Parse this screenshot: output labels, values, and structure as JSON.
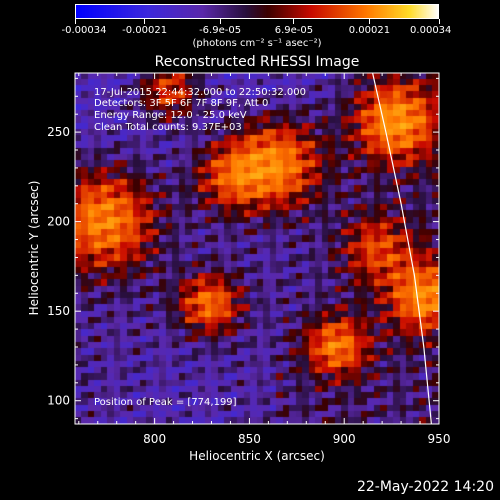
{
  "chart_data": {
    "type": "heatmap",
    "title": "Reconstructed RHESSI Image",
    "xlabel": "Heliocentric X (arcsec)",
    "ylabel": "Heliocentric Y (arcsec)",
    "xlim": [
      758,
      950
    ],
    "ylim": [
      87,
      283
    ],
    "xticks": [
      "800",
      "850",
      "900",
      "950"
    ],
    "xtick_values": [
      800,
      850,
      900,
      950
    ],
    "yticks": [
      "100",
      "150",
      "200",
      "250"
    ],
    "ytick_values": [
      100,
      150,
      200,
      250
    ],
    "colorbar": {
      "min": -0.00034,
      "max": 0.00034,
      "tick_labels": [
        "-0.00034",
        "-0.00021",
        "-6.9e-05",
        "6.9e-05",
        "0.00021",
        "0.00034"
      ],
      "tick_values": [
        -0.00034,
        -0.00021,
        -6.9e-05,
        6.9e-05,
        0.00021,
        0.00034
      ],
      "unit_label": "(photons cm⁻² s⁻¹ asec⁻²)"
    },
    "annotations": {
      "time": "17-Jul-2015 22:44:32.000 to 22:50:32.000",
      "detectors": "Detectors: 3F 5F 6F 7F 8F 9F, Att 0",
      "energy": "Energy Range: 12.0 - 25.0 keV",
      "method": "Clean     Total counts: 9.37E+03",
      "peak": "Position of Peak = [774,199]"
    },
    "limb_curve": [
      [
        915,
        283
      ],
      [
        922,
        250
      ],
      [
        930,
        210
      ],
      [
        937,
        170
      ],
      [
        942,
        130
      ],
      [
        946,
        87
      ]
    ],
    "limb_color": "#ffffff",
    "grid": false
  },
  "footer": {
    "timestamp": "22-May-2022 14:20"
  }
}
